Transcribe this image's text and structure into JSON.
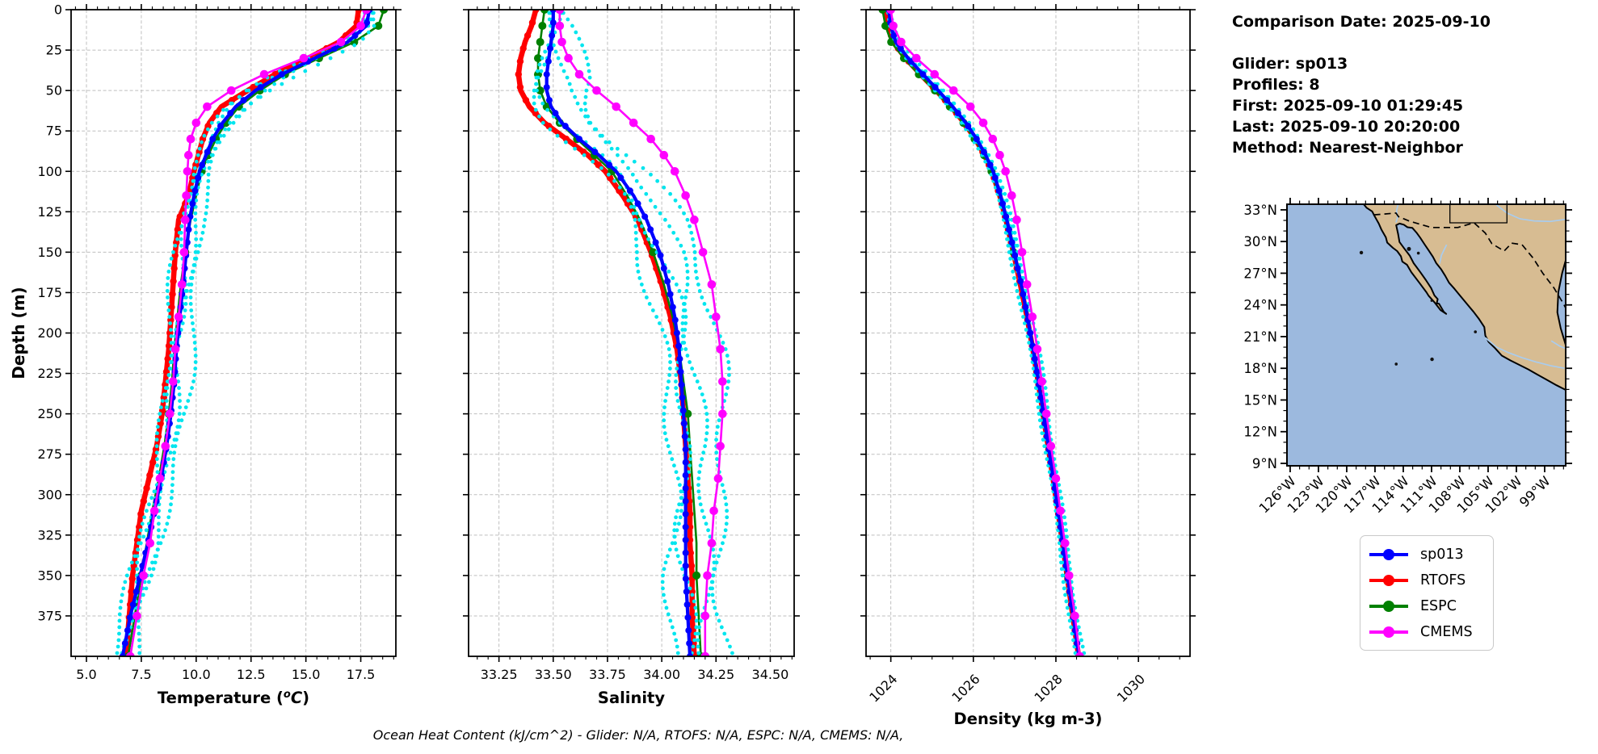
{
  "info_panel": {
    "comparison_date": "Comparison Date: 2025-09-10",
    "glider": "Glider: sp013",
    "profiles": "Profiles: 8",
    "first": "First: 2025-09-10 01:29:45",
    "last": "Last: 2025-09-10 20:20:00",
    "method": "Method: Nearest-Neighbor"
  },
  "footer": {
    "ohc_note": "Ocean Heat Content (kJ/cm^2) - Glider: N/A,  RTOFS: N/A,  ESPC: N/A,  CMEMS: N/A,"
  },
  "legend": {
    "items": [
      {
        "label": "sp013",
        "color": "#0000ff"
      },
      {
        "label": "RTOFS",
        "color": "#ff0000"
      },
      {
        "label": "ESPC",
        "color": "#008000"
      },
      {
        "label": "CMEMS",
        "color": "#ff00ff"
      }
    ]
  },
  "chart_data": {
    "type": "line",
    "description": "Glider sp013 vs model depth profiles",
    "ylabel": "Depth (m)",
    "ylim": [
      0,
      400
    ],
    "depth_ticks": [
      0,
      25,
      50,
      75,
      100,
      125,
      150,
      175,
      200,
      225,
      250,
      275,
      300,
      325,
      350,
      375
    ],
    "depth_m": [
      0,
      10,
      20,
      30,
      40,
      50,
      60,
      70,
      80,
      90,
      100,
      115,
      130,
      150,
      170,
      190,
      210,
      230,
      250,
      270,
      290,
      310,
      330,
      350,
      375,
      400
    ],
    "grid": true,
    "legend_position": "below-map",
    "series_style": {
      "sp013": {
        "color": "#0000ff",
        "lw": 4.2,
        "ms": 4.0,
        "markers": "dense"
      },
      "RTOFS": {
        "color": "#ff0000",
        "lw": 6.5,
        "ms": 4.2,
        "markers": "dense"
      },
      "ESPC": {
        "color": "#008000",
        "lw": 2.6,
        "ms": 5.0,
        "markers": "sparse"
      },
      "CMEMS": {
        "color": "#ff00ff",
        "lw": 2.6,
        "ms": 5.3,
        "markers": "all"
      },
      "glider_scatter": {
        "color": "#00e5ee",
        "dot_r": 2.4
      }
    },
    "draw_order": [
      "RTOFS",
      "ESPC",
      "_scatter",
      "sp013",
      "CMEMS"
    ],
    "panels": [
      {
        "id": "temperature",
        "xlabel": "Temperature (°C)",
        "xlim": [
          4.3,
          19.1
        ],
        "xticks": [
          5.0,
          7.5,
          10.0,
          12.5,
          15.0,
          17.5
        ],
        "xtick_labels": [
          "5.0",
          "7.5",
          "10.0",
          "12.5",
          "15.0",
          "17.5"
        ],
        "minor_step": 0.5,
        "rotate_ticks": false,
        "show_depth_labels": true,
        "series": {
          "sp013": [
            17.9,
            17.75,
            16.9,
            15.4,
            13.9,
            12.7,
            11.8,
            11.2,
            10.75,
            10.45,
            10.15,
            9.9,
            9.7,
            9.55,
            9.4,
            9.25,
            9.1,
            9.0,
            8.85,
            8.65,
            8.4,
            8.1,
            7.8,
            7.45,
            7.0,
            6.65
          ],
          "RTOFS": [
            17.4,
            17.3,
            16.5,
            15.1,
            13.6,
            12.35,
            11.15,
            10.6,
            10.3,
            10.1,
            9.9,
            9.65,
            9.2,
            9.05,
            8.95,
            8.85,
            8.75,
            8.6,
            8.45,
            8.2,
            7.85,
            7.5,
            7.3,
            7.1,
            6.95,
            6.8
          ],
          "ESPC": [
            18.55,
            18.3,
            17.2,
            15.6,
            14.05,
            12.9,
            11.95,
            11.35,
            10.9,
            10.55,
            10.25,
            10.0,
            9.75,
            9.5,
            9.3,
            9.15,
            9.0,
            8.9,
            8.75,
            8.55,
            8.3,
            8.0,
            7.75,
            7.5,
            7.2,
            6.9
          ],
          "CMEMS": [
            17.75,
            17.5,
            16.6,
            14.9,
            13.1,
            11.6,
            10.5,
            10.0,
            9.75,
            9.65,
            9.6,
            9.55,
            9.5,
            9.45,
            9.35,
            9.2,
            9.05,
            8.95,
            8.8,
            8.6,
            8.35,
            8.1,
            7.9,
            7.6,
            7.3,
            7.0
          ]
        },
        "scatter": {
          "offsets": [
            -0.38,
            -0.12,
            0.22,
            0.58
          ],
          "wiggle": 0.22
        }
      },
      {
        "id": "salinity",
        "xlabel": "Salinity",
        "xlim": [
          33.11,
          34.61
        ],
        "xticks": [
          33.25,
          33.5,
          33.75,
          34.0,
          34.25,
          34.5
        ],
        "xtick_labels": [
          "33.25",
          "33.50",
          "33.75",
          "34.00",
          "34.25",
          "34.50"
        ],
        "minor_step": 0.05,
        "rotate_ticks": false,
        "show_depth_labels": false,
        "series": {
          "sp013": [
            33.5,
            33.5,
            33.49,
            33.48,
            33.47,
            33.47,
            33.49,
            33.54,
            33.62,
            33.71,
            33.79,
            33.87,
            33.93,
            33.99,
            34.03,
            34.06,
            34.08,
            34.09,
            34.1,
            34.11,
            34.11,
            34.11,
            34.11,
            34.11,
            34.12,
            34.13
          ],
          "RTOFS": [
            33.42,
            33.4,
            33.37,
            33.35,
            33.34,
            33.35,
            33.39,
            33.46,
            33.56,
            33.66,
            33.74,
            33.82,
            33.89,
            33.95,
            34.0,
            34.04,
            34.07,
            34.09,
            34.1,
            34.11,
            34.12,
            34.13,
            34.13,
            34.14,
            34.14,
            34.15
          ],
          "ESPC": [
            33.46,
            33.45,
            33.44,
            33.43,
            33.43,
            33.44,
            33.47,
            33.53,
            33.61,
            33.69,
            33.77,
            33.84,
            33.9,
            33.96,
            34.01,
            34.05,
            34.08,
            34.1,
            34.12,
            34.13,
            34.14,
            34.15,
            34.16,
            34.16,
            34.17,
            34.18
          ],
          "CMEMS": [
            33.53,
            33.53,
            33.54,
            33.57,
            33.62,
            33.7,
            33.79,
            33.87,
            33.95,
            34.01,
            34.06,
            34.11,
            34.15,
            34.19,
            34.23,
            34.25,
            34.27,
            34.28,
            34.28,
            34.27,
            34.26,
            34.24,
            34.23,
            34.21,
            34.2,
            34.2
          ]
        },
        "scatter": {
          "offsets": [
            -0.07,
            0.0,
            0.08,
            0.17
          ],
          "wiggle": 0.035
        }
      },
      {
        "id": "density",
        "xlabel": "Density (kg m-3)",
        "xlim": [
          1023.4,
          1031.25
        ],
        "xticks": [
          1024,
          1026,
          1028,
          1030
        ],
        "xtick_labels": [
          "1024",
          "1026",
          "1028",
          "1030"
        ],
        "minor_step": 0.5,
        "rotate_ticks": true,
        "show_depth_labels": false,
        "series": {
          "sp013": [
            1023.95,
            1024.0,
            1024.12,
            1024.42,
            1024.78,
            1025.15,
            1025.5,
            1025.82,
            1026.08,
            1026.3,
            1026.48,
            1026.66,
            1026.81,
            1026.99,
            1027.16,
            1027.31,
            1027.45,
            1027.58,
            1027.7,
            1027.82,
            1027.94,
            1028.06,
            1028.17,
            1028.28,
            1028.42,
            1028.56
          ],
          "RTOFS": [
            1023.88,
            1023.93,
            1024.06,
            1024.36,
            1024.72,
            1025.1,
            1025.46,
            1025.78,
            1026.05,
            1026.27,
            1026.45,
            1026.64,
            1026.79,
            1026.97,
            1027.14,
            1027.3,
            1027.44,
            1027.57,
            1027.69,
            1027.81,
            1027.93,
            1028.05,
            1028.16,
            1028.27,
            1028.41,
            1028.55
          ],
          "ESPC": [
            1023.8,
            1023.87,
            1024.01,
            1024.32,
            1024.68,
            1025.07,
            1025.43,
            1025.76,
            1026.03,
            1026.26,
            1026.44,
            1026.63,
            1026.79,
            1026.97,
            1027.15,
            1027.31,
            1027.45,
            1027.58,
            1027.71,
            1027.83,
            1027.95,
            1028.07,
            1028.18,
            1028.29,
            1028.43,
            1028.57
          ],
          "CMEMS": [
            1024.0,
            1024.06,
            1024.25,
            1024.62,
            1025.06,
            1025.52,
            1025.93,
            1026.24,
            1026.47,
            1026.64,
            1026.78,
            1026.93,
            1027.05,
            1027.18,
            1027.3,
            1027.43,
            1027.55,
            1027.66,
            1027.77,
            1027.88,
            1028.0,
            1028.11,
            1028.22,
            1028.32,
            1028.46,
            1028.58
          ]
        },
        "scatter": {
          "offsets": [
            -0.09,
            -0.03,
            0.04,
            0.11
          ],
          "wiggle": 0.03
        }
      }
    ],
    "map": {
      "ocean_color": "#9cb9de",
      "land_color": "#d7bc92",
      "river_color": "#a9ccee",
      "extent": {
        "lon_w": [
          126.34,
          96.77
        ],
        "lat": [
          33.53,
          8.77
        ]
      },
      "lat_ticks": [
        {
          "lat": 33,
          "label": "33°N"
        },
        {
          "lat": 30,
          "label": "30°N"
        },
        {
          "lat": 27,
          "label": "27°N"
        },
        {
          "lat": 24,
          "label": "24°N"
        },
        {
          "lat": 21,
          "label": "21°N"
        },
        {
          "lat": 18,
          "label": "18°N"
        },
        {
          "lat": 15,
          "label": "15°N"
        },
        {
          "lat": 12,
          "label": "12°N"
        },
        {
          "lat": 9,
          "label": "9°N"
        }
      ],
      "lon_ticks": [
        {
          "lon": 126,
          "label": "126°W"
        },
        {
          "lon": 123,
          "label": "123°W"
        },
        {
          "lon": 120,
          "label": "120°W"
        },
        {
          "lon": 117,
          "label": "117°W"
        },
        {
          "lon": 114,
          "label": "114°W"
        },
        {
          "lon": 111,
          "label": "111°W"
        },
        {
          "lon": 108,
          "label": "108°W"
        },
        {
          "lon": 105,
          "label": "105°W"
        },
        {
          "lon": 102,
          "label": "102°W"
        },
        {
          "lon": 99,
          "label": "99°W"
        }
      ],
      "coast": [
        [
          118.2,
          33.53
        ],
        [
          117.9,
          33.2
        ],
        [
          117.3,
          32.85
        ],
        [
          117.12,
          32.53
        ],
        [
          116.85,
          32.1
        ],
        [
          116.6,
          31.7
        ],
        [
          116.3,
          31.1
        ],
        [
          115.85,
          30.4
        ],
        [
          115.7,
          29.9
        ],
        [
          115.1,
          29.4
        ],
        [
          114.65,
          29.1
        ],
        [
          114.25,
          28.6
        ],
        [
          114.1,
          28.1
        ],
        [
          113.6,
          27.8
        ],
        [
          113.15,
          27.1
        ],
        [
          112.3,
          26.1
        ],
        [
          111.55,
          25.2
        ],
        [
          111.3,
          24.85
        ],
        [
          110.65,
          24.2
        ],
        [
          110.05,
          23.5
        ],
        [
          109.45,
          23.15
        ],
        [
          109.7,
          23.35
        ],
        [
          110.2,
          24.1
        ],
        [
          110.45,
          24.15
        ],
        [
          110.35,
          24.55
        ],
        [
          110.7,
          24.9
        ],
        [
          111.05,
          25.6
        ],
        [
          111.6,
          26.35
        ],
        [
          112.2,
          27.1
        ],
        [
          112.9,
          27.95
        ],
        [
          113.3,
          28.65
        ],
        [
          113.9,
          29.35
        ],
        [
          114.4,
          29.95
        ],
        [
          114.55,
          30.7
        ],
        [
          114.75,
          31.55
        ],
        [
          114.4,
          31.7
        ],
        [
          113.95,
          31.6
        ],
        [
          113.55,
          31.35
        ],
        [
          113.05,
          31.3
        ],
        [
          112.6,
          30.85
        ],
        [
          112.2,
          30.35
        ],
        [
          111.75,
          29.75
        ],
        [
          111.3,
          29.15
        ],
        [
          110.85,
          28.55
        ],
        [
          110.5,
          27.95
        ],
        [
          110.0,
          27.4
        ],
        [
          109.55,
          26.75
        ],
        [
          109.15,
          26.1
        ],
        [
          108.55,
          25.5
        ],
        [
          107.95,
          24.85
        ],
        [
          107.25,
          24.1
        ],
        [
          106.55,
          23.35
        ],
        [
          105.95,
          22.65
        ],
        [
          105.4,
          21.9
        ],
        [
          105.3,
          21.1
        ],
        [
          104.95,
          20.5
        ],
        [
          104.25,
          19.9
        ],
        [
          103.55,
          19.2
        ],
        [
          102.65,
          18.75
        ],
        [
          101.75,
          18.35
        ],
        [
          100.75,
          17.9
        ],
        [
          99.75,
          17.4
        ],
        [
          98.75,
          16.9
        ],
        [
          97.75,
          16.4
        ],
        [
          96.77,
          15.95
        ],
        [
          96.77,
          33.53
        ]
      ],
      "gulf_water": [
        [
          96.77,
          28.2
        ],
        [
          97.15,
          27.0
        ],
        [
          97.55,
          25.2
        ],
        [
          97.65,
          23.3
        ],
        [
          97.3,
          21.8
        ],
        [
          96.9,
          20.6
        ],
        [
          96.77,
          20.2
        ]
      ],
      "border_dashed": [
        [
          117.12,
          32.53
        ],
        [
          116.1,
          32.6
        ],
        [
          115.0,
          32.68
        ],
        [
          114.78,
          32.7
        ],
        [
          114.5,
          32.35
        ],
        [
          113.4,
          31.95
        ],
        [
          111.05,
          31.33
        ],
        [
          108.2,
          31.33
        ],
        [
          106.5,
          31.77
        ],
        [
          105.3,
          30.8
        ],
        [
          104.6,
          29.8
        ],
        [
          103.3,
          29.1
        ],
        [
          102.5,
          29.85
        ],
        [
          101.4,
          29.7
        ],
        [
          100.2,
          28.4
        ],
        [
          99.2,
          27.0
        ],
        [
          98.0,
          25.6
        ],
        [
          97.0,
          24.1
        ],
        [
          96.77,
          23.7
        ]
      ],
      "state_lines": [
        [
          [
            109.05,
            33.53
          ],
          [
            109.05,
            31.77
          ],
          [
            103.0,
            31.77
          ],
          [
            103.0,
            33.53
          ]
        ]
      ],
      "rivers": [
        [
          [
            114.55,
            33.53
          ],
          [
            114.72,
            32.9
          ],
          [
            114.6,
            32.3
          ],
          [
            114.78,
            31.8
          ]
        ],
        [
          [
            104.2,
            33.53
          ],
          [
            103.0,
            32.7
          ],
          [
            101.6,
            32.15
          ],
          [
            100.1,
            31.95
          ],
          [
            98.4,
            31.9
          ],
          [
            96.77,
            32.1
          ]
        ],
        [
          [
            109.4,
            29.7
          ],
          [
            109.95,
            28.7
          ],
          [
            110.15,
            27.9
          ]
        ],
        [
          [
            105.3,
            20.9
          ],
          [
            104.1,
            20.0
          ],
          [
            102.9,
            19.5
          ],
          [
            101.4,
            19.0
          ],
          [
            99.9,
            18.6
          ],
          [
            98.4,
            18.25
          ],
          [
            96.9,
            18.0
          ]
        ],
        [
          [
            98.3,
            20.6
          ],
          [
            97.4,
            20.1
          ],
          [
            96.85,
            19.9
          ]
        ]
      ],
      "islands": [
        [
          118.45,
          28.95,
          2.2
        ],
        [
          113.4,
          29.3,
          2.5
        ],
        [
          112.4,
          28.9,
          1.8
        ],
        [
          110.95,
          18.85,
          2.2
        ],
        [
          114.75,
          18.4,
          1.8
        ],
        [
          106.35,
          21.45,
          1.8
        ],
        [
          111.0,
          24.4,
          1.4
        ]
      ]
    }
  }
}
